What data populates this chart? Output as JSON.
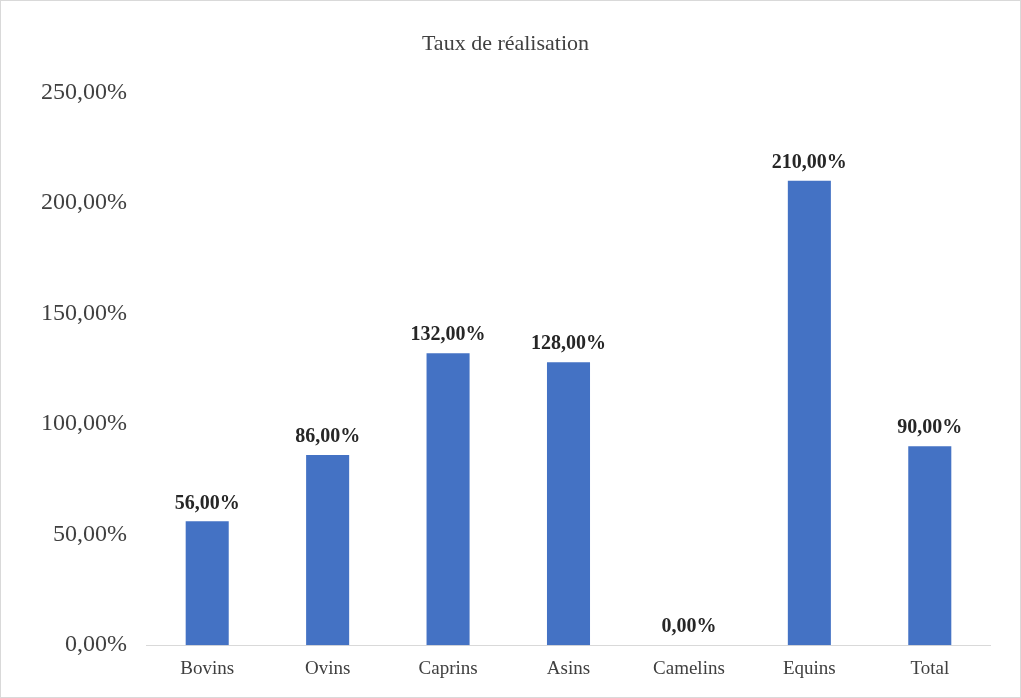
{
  "chart_data": {
    "type": "bar",
    "title": "Taux de réalisation",
    "categories": [
      "Bovins",
      "Ovins",
      "Caprins",
      "Asins",
      "Camelins",
      "Equins",
      "Total"
    ],
    "values": [
      56,
      86,
      132,
      128,
      0,
      210,
      90
    ],
    "value_labels": [
      "56,00%",
      "86,00%",
      "132,00%",
      "128,00%",
      "0,00%",
      "210,00%",
      "90,00%"
    ],
    "color": "#4472c4",
    "ylim": [
      0,
      250
    ],
    "yticks": [
      {
        "value": 0,
        "label": "0,00%"
      },
      {
        "value": 50,
        "label": "50,00%"
      },
      {
        "value": 100,
        "label": "100,00%"
      },
      {
        "value": 150,
        "label": "150,00%"
      },
      {
        "value": 200,
        "label": "200,00%"
      },
      {
        "value": 250,
        "label": "250,00%"
      }
    ],
    "grid": false,
    "legend": false
  }
}
